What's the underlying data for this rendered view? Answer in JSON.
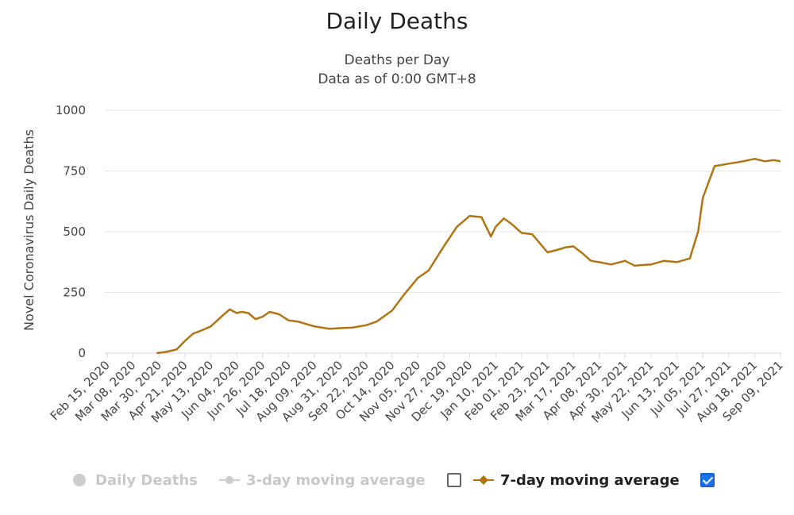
{
  "chart_data": {
    "type": "line",
    "title": "Daily Deaths",
    "subtitle_lines": [
      "Deaths per Day",
      "Data as of 0:00 GMT+8"
    ],
    "ylabel": "Novel Coronavirus Daily Deaths",
    "ylim": [
      0,
      1000
    ],
    "yticks": [
      0,
      250,
      500,
      750,
      1000
    ],
    "grid": true,
    "x_tick_labels": [
      "Feb 15, 2020",
      "Mar 08, 2020",
      "Mar 30, 2020",
      "Apr 21, 2020",
      "May 13, 2020",
      "Jun 04, 2020",
      "Jun 26, 2020",
      "Jul 18, 2020",
      "Aug 09, 2020",
      "Aug 31, 2020",
      "Sep 22, 2020",
      "Oct 14, 2020",
      "Nov 05, 2020",
      "Nov 27, 2020",
      "Dec 19, 2020",
      "Jan 10, 2021",
      "Feb 01, 2021",
      "Feb 23, 2021",
      "Mar 17, 2021",
      "Apr 08, 2021",
      "Apr 30, 2021",
      "May 22, 2021",
      "Jun 13, 2021",
      "Jul 05, 2021",
      "Jul 27, 2021",
      "Aug 18, 2021",
      "Sep 09, 2021"
    ],
    "legend": [
      {
        "name": "Daily Deaths",
        "visible": false,
        "marker": "circle"
      },
      {
        "name": "3-day moving average",
        "visible": false,
        "marker": "circle-line"
      },
      {
        "name": "7-day moving average",
        "visible": true,
        "marker": "diamond-line"
      }
    ],
    "legend_position": "bottom",
    "series": [
      {
        "name": "7-day moving average",
        "color": "#b07412",
        "x": [
          "Mar 28, 2020",
          "Apr 05, 2020",
          "Apr 14, 2020",
          "Apr 21, 2020",
          "Apr 28, 2020",
          "May 06, 2020",
          "May 13, 2020",
          "May 22, 2020",
          "May 29, 2020",
          "Jun 04, 2020",
          "Jun 08, 2020",
          "Jun 14, 2020",
          "Jun 20, 2020",
          "Jun 26, 2020",
          "Jul 02, 2020",
          "Jul 10, 2020",
          "Jul 18, 2020",
          "Jul 26, 2020",
          "Aug 09, 2020",
          "Aug 22, 2020",
          "Aug 31, 2020",
          "Sep 10, 2020",
          "Sep 22, 2020",
          "Oct 01, 2020",
          "Oct 14, 2020",
          "Oct 24, 2020",
          "Nov 05, 2020",
          "Nov 14, 2020",
          "Nov 27, 2020",
          "Dec 08, 2020",
          "Dec 19, 2020",
          "Dec 29, 2020",
          "Jan 06, 2021",
          "Jan 10, 2021",
          "Jan 17, 2021",
          "Jan 24, 2021",
          "Feb 01, 2021",
          "Feb 10, 2021",
          "Feb 23, 2021",
          "Mar 03, 2021",
          "Mar 10, 2021",
          "Mar 17, 2021",
          "Mar 25, 2021",
          "Apr 01, 2021",
          "Apr 08, 2021",
          "Apr 18, 2021",
          "Apr 30, 2021",
          "May 08, 2021",
          "May 22, 2021",
          "Jun 02, 2021",
          "Jun 13, 2021",
          "Jun 24, 2021",
          "Jul 01, 2021",
          "Jul 05, 2021",
          "Jul 15, 2021",
          "Jul 27, 2021",
          "Aug 08, 2021",
          "Aug 18, 2021",
          "Aug 27, 2021",
          "Sep 03, 2021",
          "Sep 09, 2021"
        ],
        "values": [
          0,
          5,
          15,
          50,
          80,
          95,
          110,
          150,
          180,
          165,
          170,
          165,
          140,
          150,
          170,
          160,
          135,
          130,
          110,
          100,
          103,
          105,
          115,
          130,
          175,
          240,
          310,
          340,
          440,
          520,
          565,
          560,
          480,
          520,
          555,
          530,
          495,
          490,
          415,
          425,
          435,
          440,
          410,
          380,
          375,
          365,
          380,
          360,
          365,
          380,
          375,
          390,
          500,
          640,
          770,
          780,
          790,
          800,
          790,
          795,
          790
        ]
      }
    ]
  }
}
